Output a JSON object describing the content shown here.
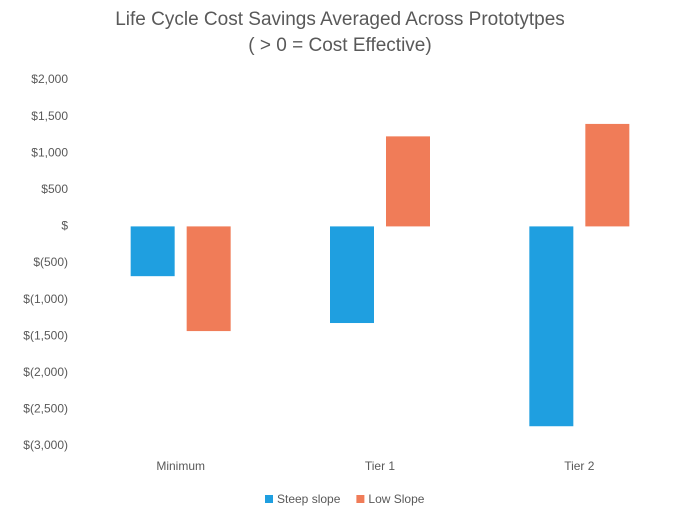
{
  "chart_data": {
    "type": "bar",
    "title": "Life Cycle Cost Savings  Averaged Across Prototytpes",
    "subtitle": "( > 0 = Cost Effective)",
    "categories": [
      "Minimum",
      "Tier 1",
      "Tier 2"
    ],
    "series": [
      {
        "name": "Steep slope",
        "color": "#1f9fe0",
        "values": [
          -680,
          -1320,
          -2730
        ]
      },
      {
        "name": "Low Slope",
        "color": "#f07c58",
        "values": [
          -1430,
          1230,
          1400
        ]
      }
    ],
    "ylim": [
      -3000,
      2000
    ],
    "yticks": [
      {
        "value": -3000,
        "label": "$(3,000)"
      },
      {
        "value": -2500,
        "label": "$(2,500)"
      },
      {
        "value": -2000,
        "label": "$(2,000)"
      },
      {
        "value": -1500,
        "label": "$(1,500)"
      },
      {
        "value": -1000,
        "label": "$(1,000)"
      },
      {
        "value": -500,
        "label": "$(500)"
      },
      {
        "value": 0,
        "label": "$"
      },
      {
        "value": 500,
        "label": "$500"
      },
      {
        "value": 1000,
        "label": "$1,000"
      },
      {
        "value": 1500,
        "label": "$1,500"
      },
      {
        "value": 2000,
        "label": "$2,000"
      }
    ],
    "grid": false,
    "legend": "bottom"
  }
}
